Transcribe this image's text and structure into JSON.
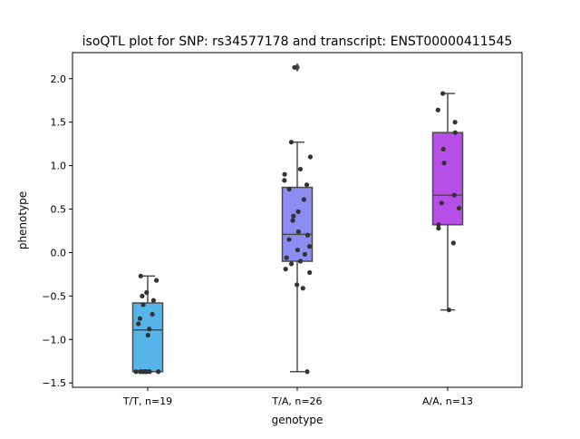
{
  "chart_data": {
    "type": "box",
    "title": "isoQTL plot for SNP: rs34577178 and transcript: ENST00000411545",
    "xlabel": "genotype",
    "ylabel": "phenotype",
    "ylim": [
      -1.55,
      2.3
    ],
    "yticks": [
      -1.5,
      -1.0,
      -0.5,
      0.0,
      0.5,
      1.0,
      1.5,
      2.0
    ],
    "ytick_labels": [
      "−1.5",
      "−1.0",
      "−0.5",
      "0.0",
      "0.5",
      "1.0",
      "1.5",
      "2.0"
    ],
    "categories": [
      "T/T, n=19",
      "T/A, n=26",
      "A/A, n=13"
    ],
    "colors": [
      "#56b4e9",
      "#8c8cf2",
      "#b84ee8"
    ],
    "boxes": [
      {
        "whisker_low": -1.37,
        "q1": -1.37,
        "median": -0.89,
        "q3": -0.58,
        "whisker_high": -0.27,
        "outliers": []
      },
      {
        "whisker_low": -1.37,
        "q1": -0.1,
        "median": 0.21,
        "q3": 0.75,
        "whisker_high": 1.27,
        "outliers": [
          2.13
        ]
      },
      {
        "whisker_low": -0.66,
        "q1": 0.32,
        "median": 0.66,
        "q3": 1.38,
        "whisker_high": 1.83,
        "outliers": []
      }
    ],
    "points": [
      [
        -0.27,
        -0.32,
        -0.46,
        -0.5,
        -0.55,
        -0.6,
        -0.71,
        -0.76,
        -0.82,
        -0.88,
        -0.95,
        -1.37,
        -1.37,
        -1.37,
        -1.37,
        -1.37,
        -1.37,
        -1.37,
        -1.37
      ],
      [
        1.27,
        1.1,
        0.96,
        0.9,
        0.83,
        0.78,
        0.73,
        0.61,
        0.47,
        0.42,
        0.37,
        0.24,
        0.2,
        0.15,
        0.07,
        0.03,
        -0.02,
        -0.06,
        -0.1,
        -0.13,
        -0.19,
        -0.23,
        -0.37,
        -0.41,
        -1.37,
        2.13
      ],
      [
        1.83,
        1.64,
        1.5,
        1.38,
        1.19,
        1.03,
        0.66,
        0.57,
        0.51,
        0.32,
        0.28,
        0.11,
        -0.66
      ]
    ],
    "grid": false,
    "legend": "none"
  }
}
